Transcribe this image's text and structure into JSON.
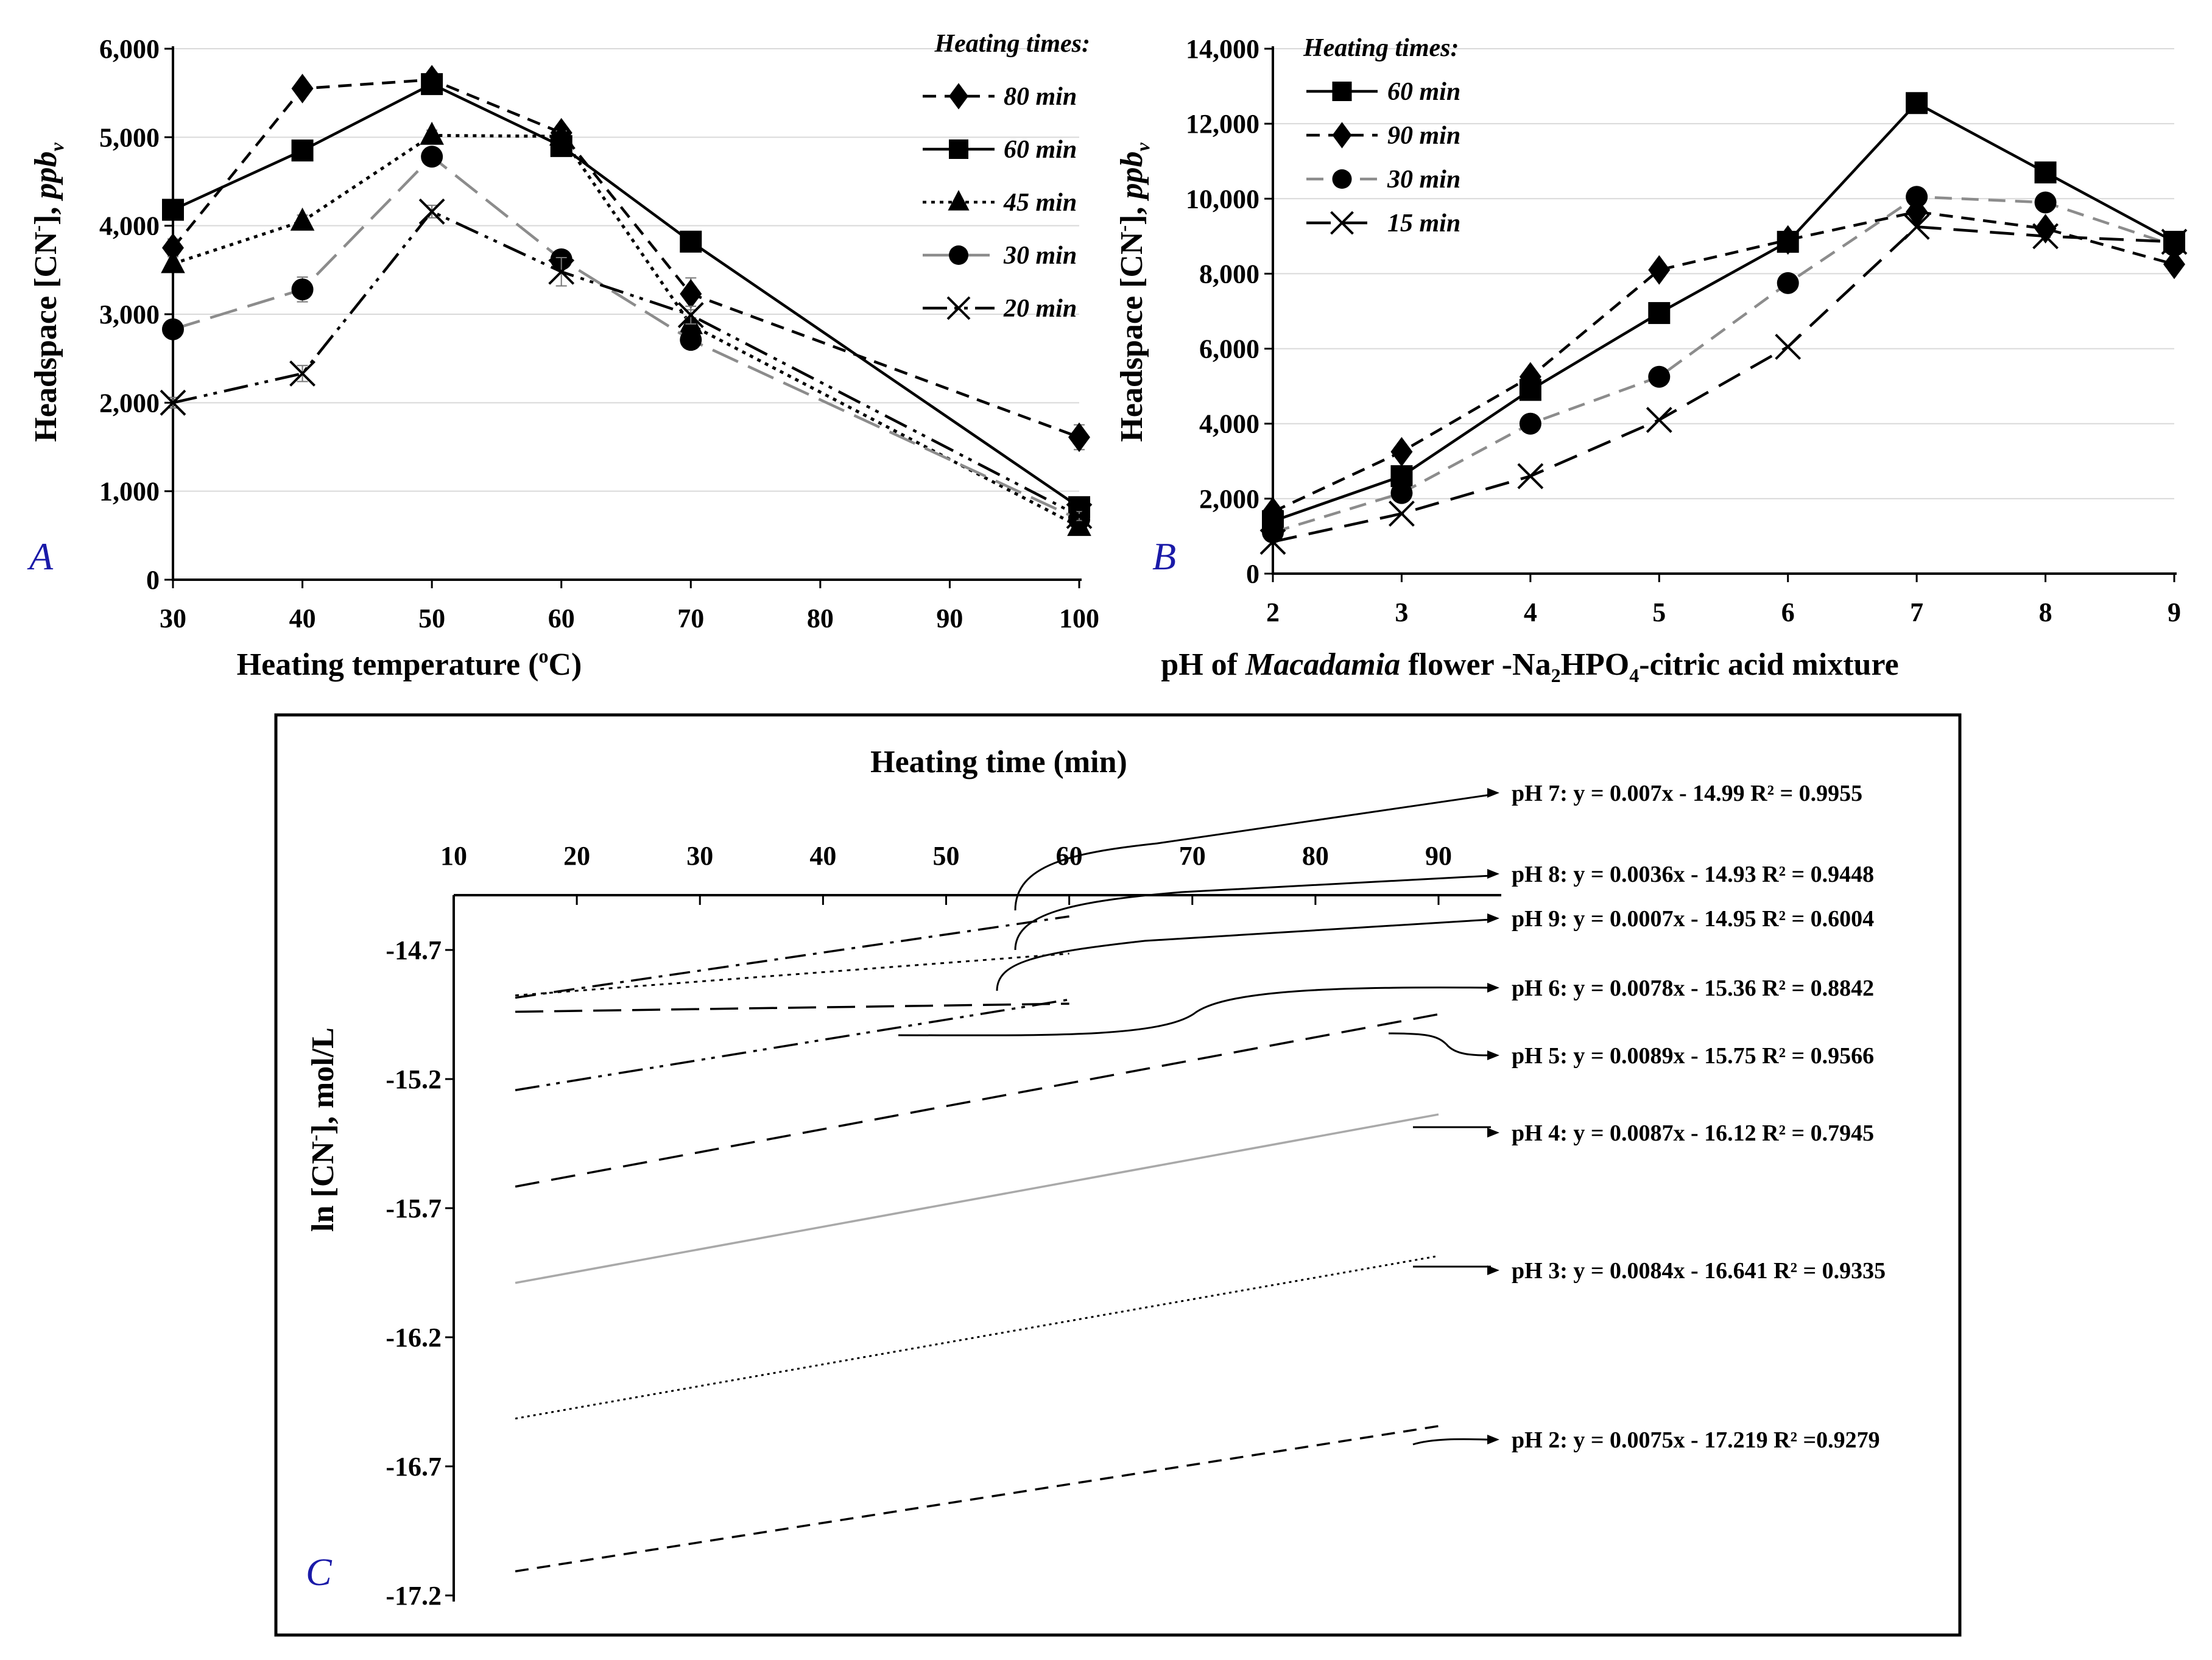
{
  "colors": {
    "ink": "#000000",
    "gray": "#8c8c8c",
    "lightgray": "#a9a9a9",
    "panel_tag": "#1a1aa8"
  },
  "chart_data": [
    {
      "id": "A",
      "type": "line",
      "panel_label": "A",
      "xlabel": "Heating temperature (°C)",
      "xlabel_parts": [
        "Heating temperature (",
        "o",
        "C)"
      ],
      "ylabel_parts": [
        "Headspace [CN",
        "-",
        "], ",
        "ppb",
        "v"
      ],
      "ylabel": "Headspace [CN-], ppbv",
      "x_ticks": [
        "30",
        "40",
        "50",
        "60",
        "70",
        "80",
        "90",
        "100"
      ],
      "x_tick_values": [
        30,
        40,
        50,
        60,
        70,
        80,
        90,
        100
      ],
      "y_ticks": [
        "0",
        "1,000",
        "2,000",
        "3,000",
        "4,000",
        "5,000",
        "6,000"
      ],
      "y_tick_values": [
        0,
        1000,
        2000,
        3000,
        4000,
        5000,
        6000
      ],
      "xlim": [
        30,
        100
      ],
      "ylim": [
        0,
        6000
      ],
      "legend_title": "Heating times:",
      "legend_position": "top-right",
      "x": [
        30,
        40,
        50,
        60,
        70,
        100
      ],
      "series": [
        {
          "name": "80 min",
          "marker": "diamond",
          "dash": "short",
          "color": "#000000",
          "values": [
            3750,
            5550,
            5650,
            5050,
            3230,
            1610
          ],
          "err": [
            100,
            60,
            60,
            60,
            180,
            140
          ]
        },
        {
          "name": "60 min",
          "marker": "square",
          "dash": "solid",
          "color": "#000000",
          "values": [
            4180,
            4850,
            5600,
            4900,
            3820,
            820
          ],
          "err": [
            80,
            70,
            60,
            80,
            100,
            60
          ]
        },
        {
          "name": "45 min",
          "marker": "triangle",
          "dash": "dot",
          "color": "#000000",
          "values": [
            3570,
            4050,
            5020,
            5010,
            2880,
            600
          ],
          "err": [
            80,
            70,
            60,
            60,
            80,
            50
          ]
        },
        {
          "name": "30 min",
          "marker": "circle",
          "dash": "longdash",
          "color": "#8c8c8c",
          "values": [
            2830,
            3280,
            4780,
            3620,
            2710,
            680
          ],
          "err": [
            90,
            140,
            90,
            80,
            90,
            50
          ]
        },
        {
          "name": "20 min",
          "marker": "x",
          "dash": "dashdotdot",
          "color": "#000000",
          "values": [
            2000,
            2330,
            4160,
            3480,
            2990,
            720
          ],
          "err": [
            60,
            90,
            70,
            160,
            100,
            50
          ]
        }
      ]
    },
    {
      "id": "B",
      "type": "line",
      "panel_label": "B",
      "xlabel": "pH of Macadamia flower -Na2HPO4-citric acid mixture",
      "xlabel_parts": [
        "pH of ",
        "Macadamia",
        " flower -Na",
        "2",
        "HPO",
        "4",
        "-citric acid mixture"
      ],
      "ylabel_parts": [
        "Headspace [CN",
        "-",
        "], ",
        "ppb",
        "v"
      ],
      "ylabel": "Headspace [CN-], ppbv",
      "x_ticks": [
        "2",
        "3",
        "4",
        "5",
        "6",
        "7",
        "8",
        "9"
      ],
      "x_tick_values": [
        2,
        3,
        4,
        5,
        6,
        7,
        8,
        9
      ],
      "y_ticks": [
        "0",
        "2,000",
        "4,000",
        "6,000",
        "8,000",
        "10,000",
        "12,000",
        "14,000"
      ],
      "y_tick_values": [
        0,
        2000,
        4000,
        6000,
        8000,
        10000,
        12000,
        14000
      ],
      "xlim": [
        2,
        9
      ],
      "ylim": [
        0,
        14000
      ],
      "legend_title": "Heating times:",
      "legend_position": "top-left",
      "x": [
        2,
        3,
        4,
        5,
        6,
        7,
        8,
        9
      ],
      "series": [
        {
          "name": "60 min",
          "marker": "square",
          "dash": "solid",
          "color": "#000000",
          "values": [
            1400,
            2600,
            4900,
            6950,
            8850,
            12550,
            10700,
            8850
          ]
        },
        {
          "name": "90 min",
          "marker": "diamond",
          "dash": "short",
          "color": "#000000",
          "values": [
            1650,
            3250,
            5250,
            8100,
            8900,
            9650,
            9200,
            8250
          ]
        },
        {
          "name": "30 min",
          "marker": "circle",
          "dash": "medium",
          "color": "#8c8c8c",
          "values": [
            1100,
            2150,
            4000,
            5250,
            7750,
            10050,
            9900,
            8750
          ]
        },
        {
          "name": "15 min",
          "marker": "x",
          "dash": "long",
          "color": "#000000",
          "values": [
            850,
            1600,
            2600,
            4100,
            6050,
            9250,
            9000,
            8850
          ]
        }
      ]
    },
    {
      "id": "C",
      "type": "line",
      "panel_label": "C",
      "xlabel": "Heating time (min)",
      "ylabel": "ln [CN-], mol/L",
      "ylabel_parts": [
        "ln [CN",
        "-",
        "], mol/L"
      ],
      "x_ticks": [
        "10",
        "20",
        "30",
        "40",
        "50",
        "60",
        "70",
        "80",
        "90"
      ],
      "x_tick_values": [
        10,
        20,
        30,
        40,
        50,
        60,
        70,
        80,
        90
      ],
      "y_ticks": [
        "-14.7",
        "-15.2",
        "-15.7",
        "-16.2",
        "-16.7",
        "-17.2"
      ],
      "y_tick_values": [
        -14.7,
        -15.2,
        -15.7,
        -16.2,
        -16.7,
        -17.2
      ],
      "xlim": [
        10,
        95
      ],
      "ylim": [
        -17.2,
        -14.5
      ],
      "fits": [
        {
          "name": "pH 7",
          "slope": 0.007,
          "intercept": -14.99,
          "x_range": [
            15,
            60
          ],
          "dash": "dashdot",
          "color": "#000000",
          "label": "pH 7: y = 0.007x - 14.99    R² = 0.9955"
        },
        {
          "name": "pH 8",
          "slope": 0.0036,
          "intercept": -14.93,
          "x_range": [
            15,
            60
          ],
          "dash": "dot",
          "color": "#000000",
          "label": "pH 8: y = 0.0036x - 14.93  R² = 0.9448"
        },
        {
          "name": "pH 9",
          "slope": 0.0007,
          "intercept": -14.95,
          "x_range": [
            15,
            60
          ],
          "dash": "longdash",
          "color": "#000000",
          "label": "pH 9: y = 0.0007x - 14.95  R² = 0.6004"
        },
        {
          "name": "pH 6",
          "slope": 0.0078,
          "intercept": -15.36,
          "x_range": [
            15,
            60
          ],
          "dash": "dashdotdot",
          "color": "#000000",
          "label": "pH 6: y = 0.0078x - 15.36  R² = 0.8842"
        },
        {
          "name": "pH 5",
          "slope": 0.0089,
          "intercept": -15.75,
          "x_range": [
            15,
            90
          ],
          "dash": "long",
          "color": "#000000",
          "label": "pH 5: y = 0.0089x - 15.75   R² = 0.9566"
        },
        {
          "name": "pH 4",
          "slope": 0.0087,
          "intercept": -16.12,
          "x_range": [
            15,
            90
          ],
          "dash": "solid",
          "color": "#a9a9a9",
          "label": "pH 4: y = 0.0087x - 16.12  R² = 0.7945"
        },
        {
          "name": "pH 3",
          "slope": 0.0084,
          "intercept": -16.641,
          "x_range": [
            15,
            90
          ],
          "dash": "fine",
          "color": "#000000",
          "label": "pH 3: y = 0.0084x - 16.641 R² = 0.9335"
        },
        {
          "name": "pH 2",
          "slope": 0.0075,
          "intercept": -17.219,
          "x_range": [
            15,
            90
          ],
          "dash": "short",
          "color": "#000000",
          "label": "pH 2: y = 0.0075x - 17.219 R² =0.9279"
        }
      ]
    }
  ]
}
